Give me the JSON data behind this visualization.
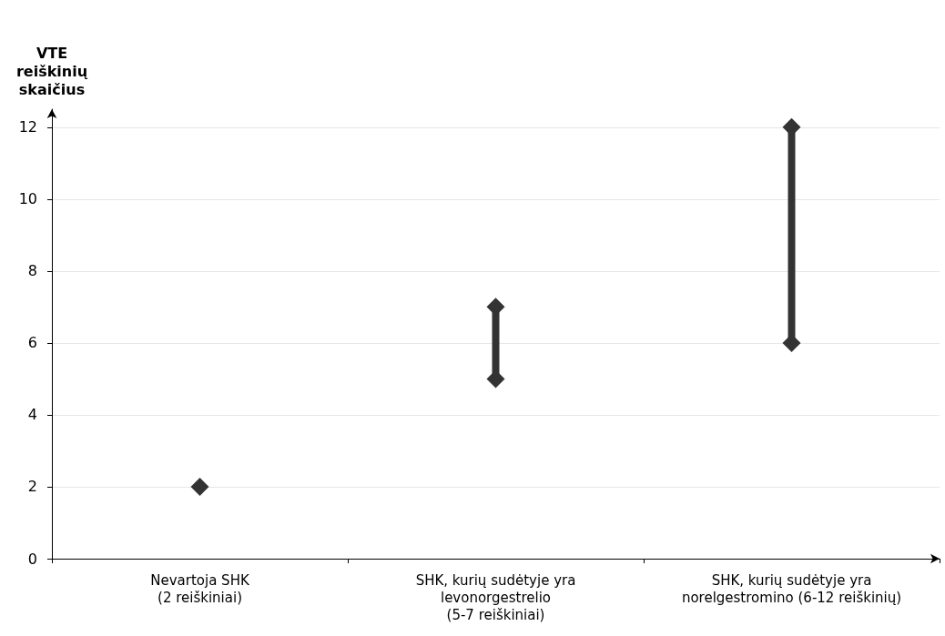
{
  "chart_data": {
    "type": "line",
    "ylabel": "VTE\nreiškinių\nskaičius",
    "categories": [
      "Nevartoja SHK\n(2 reiškiniai)",
      "SHK, kurių sudėtyje yra\nlevonorgestrelio\n(5-7 reiškiniai)",
      "SHK, kurių sudėtyje yra\nnorelgestromino (6-12 reiškinių)"
    ],
    "series": [
      {
        "type": "scatter",
        "color": "#333333",
        "x": [
          "Nevartoja SHK\n(2 reiškiniai)"
        ],
        "values": [
          2
        ]
      },
      {
        "color": "#333333",
        "x": [
          "SHK, kurių sudėtyje yra\nlevonorgestrelio\n(5-7 reiškiniai)",
          "SHK, kurių sudėtyje yra\nlevonorgestrelio\n(5-7 reiškiniai)"
        ],
        "values": [
          5,
          7
        ]
      },
      {
        "color": "#333333",
        "x": [
          "SHK, kurių sudėtyje yra\nnorelgestromino (6-12 reiškinių)",
          "SHK, kurių sudėtyje yra\nnorelgestromino (6-12 reiškinių)"
        ],
        "values": [
          6,
          12
        ]
      }
    ],
    "marker": "diamond",
    "line_style": "solid",
    "ylim": [
      0,
      12.5
    ],
    "yticks": [
      0,
      2,
      4,
      6,
      8,
      10,
      12
    ],
    "grid": "y"
  }
}
